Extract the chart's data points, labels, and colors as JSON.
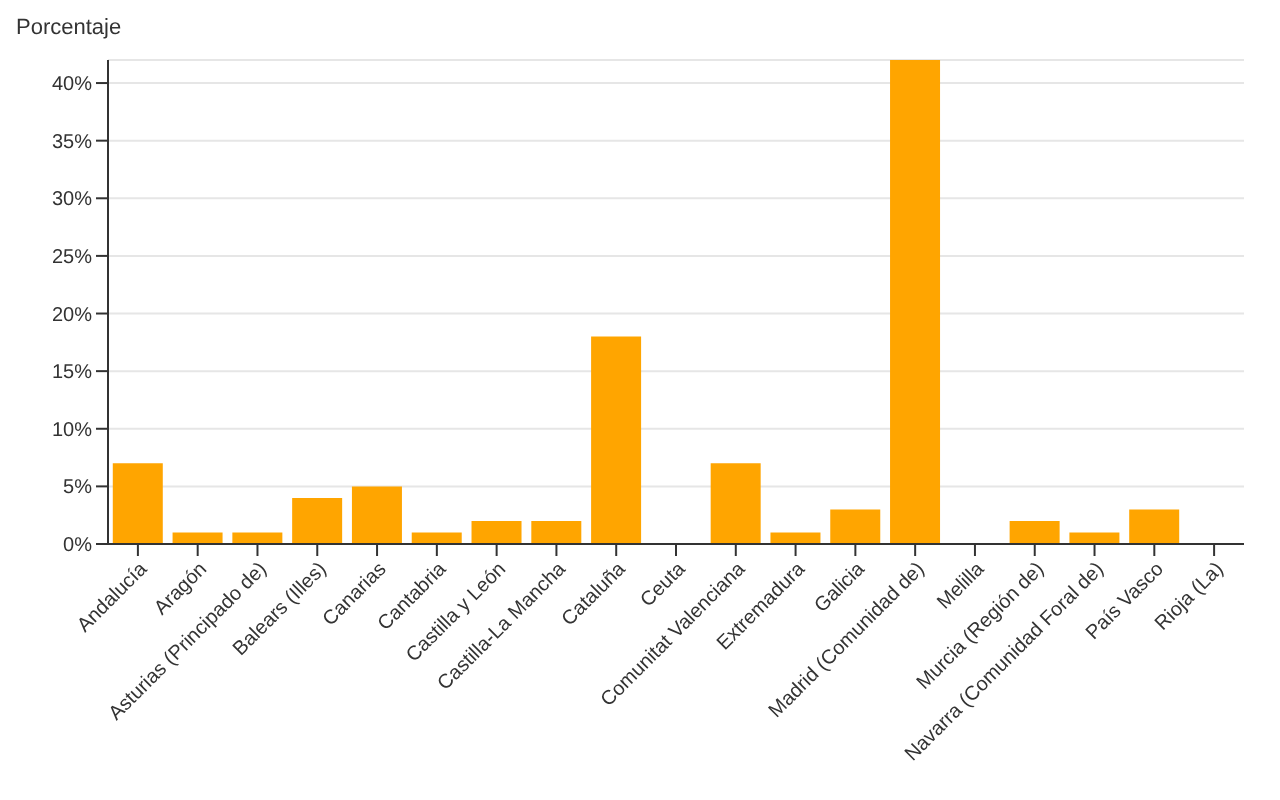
{
  "chart_data": {
    "type": "bar",
    "ylabel": "Porcentaje",
    "categories": [
      "Andalucía",
      "Aragón",
      "Asturias (Principado de)",
      "Balears (Illes)",
      "Canarias",
      "Cantabria",
      "Castilla y León",
      "Castilla-La Mancha",
      "Cataluña",
      "Ceuta",
      "Comunitat Valenciana",
      "Extremadura",
      "Galicia",
      "Madrid (Comunidad de)",
      "Melilla",
      "Murcia (Región de)",
      "Navarra (Comunidad Foral de)",
      "País Vasco",
      "Rioja (La)"
    ],
    "values": [
      7,
      1,
      1,
      4,
      5,
      1,
      2,
      2,
      18,
      0,
      7,
      1,
      3,
      42,
      0,
      2,
      1,
      3,
      0
    ],
    "color": "#ffa500",
    "ylim": [
      0,
      42
    ],
    "yticks": [
      {
        "value": 0,
        "label": "0%"
      },
      {
        "value": 5,
        "label": "5%"
      },
      {
        "value": 10,
        "label": "10%"
      },
      {
        "value": 15,
        "label": "15%"
      },
      {
        "value": 20,
        "label": "20%"
      },
      {
        "value": 25,
        "label": "25%"
      },
      {
        "value": 30,
        "label": "30%"
      },
      {
        "value": 35,
        "label": "35%"
      },
      {
        "value": 40,
        "label": "40%"
      }
    ],
    "grid": "y",
    "legend": false
  }
}
